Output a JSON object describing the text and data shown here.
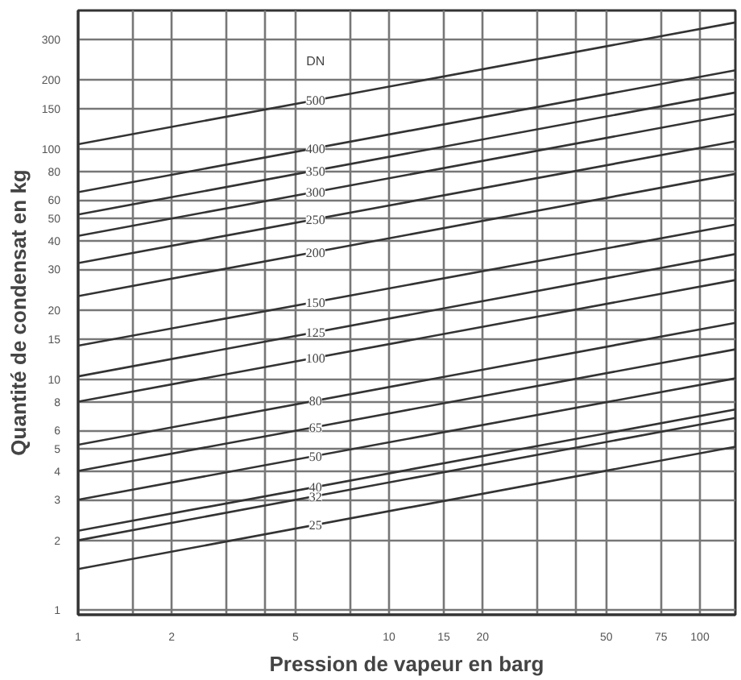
{
  "chart_data": {
    "type": "line",
    "xlabel": "Pression de vapeur en barg",
    "ylabel": "Quantité de condensat en kg",
    "log": "xy",
    "grid": true,
    "marker": "none",
    "line_style": "solid",
    "x": [
      1,
      130
    ],
    "xlim": [
      1,
      130
    ],
    "ylim": [
      0.95,
      400
    ],
    "xticks": [
      1,
      {
        "value": 1.5,
        "label": null
      },
      2,
      {
        "value": 3,
        "label": null
      },
      {
        "value": 4,
        "label": null
      },
      5,
      {
        "value": 7.5,
        "label": null
      },
      10,
      15,
      20,
      {
        "value": 30,
        "label": null
      },
      {
        "value": 40,
        "label": null
      },
      50,
      75,
      100
    ],
    "yticks": [
      1,
      2,
      3,
      4,
      5,
      6,
      8,
      10,
      15,
      20,
      30,
      40,
      50,
      60,
      80,
      100,
      150,
      200,
      300
    ],
    "annotations": [
      "DN"
    ],
    "series": [
      {
        "name": "500",
        "color": "#333333",
        "values": [
          105,
          355
        ]
      },
      {
        "name": "400",
        "color": "#333333",
        "values": [
          65,
          220
        ]
      },
      {
        "name": "350",
        "color": "#333333",
        "values": [
          52,
          176
        ]
      },
      {
        "name": "300",
        "color": "#333333",
        "values": [
          42,
          142
        ]
      },
      {
        "name": "250",
        "color": "#333333",
        "values": [
          32,
          108
        ]
      },
      {
        "name": "200",
        "color": "#333333",
        "values": [
          23,
          78
        ]
      },
      {
        "name": "150",
        "color": "#333333",
        "values": [
          14,
          47
        ]
      },
      {
        "name": "125",
        "color": "#333333",
        "values": [
          10.3,
          35
        ]
      },
      {
        "name": "100",
        "color": "#333333",
        "values": [
          8,
          27
        ]
      },
      {
        "name": "80",
        "color": "#333333",
        "values": [
          5.2,
          17.6
        ]
      },
      {
        "name": "65",
        "color": "#333333",
        "values": [
          4,
          13.5
        ]
      },
      {
        "name": "50",
        "color": "#333333",
        "values": [
          3,
          10.1
        ]
      },
      {
        "name": "40",
        "color": "#333333",
        "values": [
          2.2,
          7.4
        ]
      },
      {
        "name": "32",
        "color": "#333333",
        "values": [
          2.0,
          6.8
        ]
      },
      {
        "name": "25",
        "color": "#333333",
        "values": [
          1.5,
          5.1
        ]
      }
    ]
  }
}
